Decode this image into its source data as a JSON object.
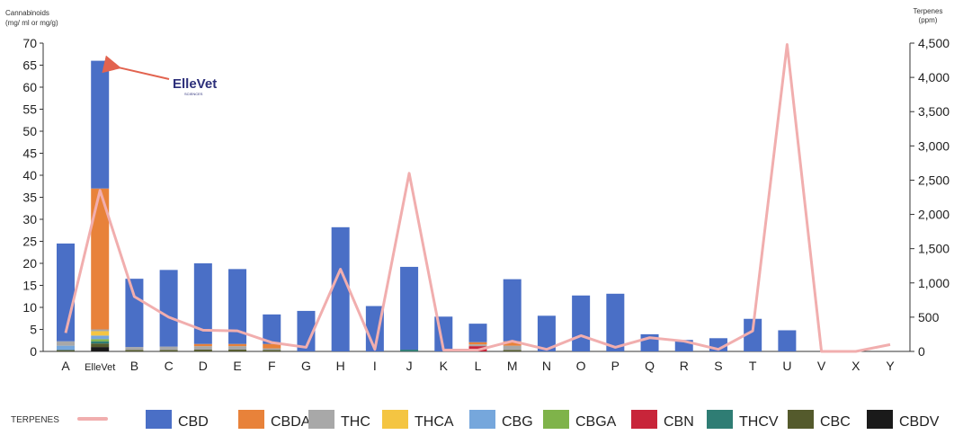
{
  "chart_data": {
    "type": "bar",
    "stacked": true,
    "categories": [
      "A",
      "ElleVet",
      "B",
      "C",
      "D",
      "E",
      "F",
      "G",
      "H",
      "I",
      "J",
      "K",
      "L",
      "M",
      "N",
      "O",
      "P",
      "Q",
      "R",
      "S",
      "T",
      "U",
      "V",
      "X",
      "Y"
    ],
    "y_left_label": [
      "Cannabinoids",
      "(mg/ ml or mg/g)"
    ],
    "y_right_label": [
      "Terpenes",
      "(ppm)"
    ],
    "y_left_range": [
      0,
      70
    ],
    "y_right_range": [
      0,
      4500
    ],
    "y_left_ticks": [
      0,
      5,
      10,
      15,
      20,
      25,
      30,
      35,
      40,
      45,
      50,
      55,
      60,
      65,
      70
    ],
    "y_right_ticks": [
      0,
      500,
      1000,
      1500,
      2000,
      2500,
      3000,
      3500,
      4000,
      4500
    ],
    "y_right_tick_labels": [
      "0",
      "500",
      "1,000",
      "1,500",
      "2,000",
      "2,500",
      "3,000",
      "3,500",
      "4,000",
      "4,500"
    ],
    "grid": false,
    "legend_position": "bottom",
    "colors": {
      "CBD": "#4a6fc6",
      "CBDA": "#e8823a",
      "THC": "#a8a8a8",
      "THCA": "#f4c542",
      "CBG": "#76a7dc",
      "CBGA": "#7fb34a",
      "CBN": "#c8253a",
      "THCV": "#2f7d74",
      "CBC": "#545a2c",
      "CBDV": "#1a1a1a",
      "TERPENES": "#f1aeae"
    },
    "series": [
      {
        "name": "CBDV",
        "values": [
          0,
          1.0,
          0,
          0,
          0,
          0,
          0,
          0,
          0,
          0,
          0,
          0,
          0,
          0,
          0,
          0,
          0,
          0,
          0,
          0,
          0,
          0,
          0,
          0,
          0
        ]
      },
      {
        "name": "CBC",
        "values": [
          0.3,
          0.8,
          0.3,
          0.3,
          0.4,
          0.4,
          0.3,
          0,
          0,
          0,
          0,
          0,
          0,
          0.3,
          0,
          0,
          0,
          0,
          0,
          0,
          0,
          0,
          0,
          0,
          0
        ]
      },
      {
        "name": "THCV",
        "values": [
          0,
          0.5,
          0,
          0,
          0,
          0,
          0,
          0,
          0,
          0,
          0.4,
          0,
          0,
          0,
          0,
          0,
          0,
          0,
          0,
          0,
          0,
          0,
          0,
          0,
          0
        ]
      },
      {
        "name": "CBN",
        "values": [
          0,
          0,
          0,
          0,
          0,
          0,
          0,
          0,
          0,
          0,
          0,
          0,
          1.2,
          0,
          0,
          0,
          0,
          0,
          0,
          0,
          0,
          0,
          0,
          0,
          0
        ]
      },
      {
        "name": "CBGA",
        "values": [
          0,
          0.5,
          0,
          0,
          0,
          0,
          0,
          0,
          0,
          0,
          0,
          0,
          0,
          0,
          0,
          0,
          0,
          0,
          0,
          0,
          0,
          0,
          0,
          0,
          0
        ]
      },
      {
        "name": "CBG",
        "values": [
          1.0,
          0.8,
          0,
          0,
          0,
          0,
          0,
          0,
          0,
          0,
          0,
          0,
          0,
          0,
          0,
          0,
          0,
          0,
          0,
          0,
          0,
          0,
          0,
          0,
          0
        ]
      },
      {
        "name": "THCA",
        "values": [
          0,
          1.0,
          0,
          0,
          0,
          0,
          0,
          0,
          0,
          0,
          0,
          0,
          0,
          0,
          0,
          0,
          0,
          0,
          0,
          0,
          0,
          0,
          0,
          0,
          0
        ]
      },
      {
        "name": "THC",
        "values": [
          1.0,
          0.4,
          0.7,
          0.8,
          0.8,
          0.8,
          0.4,
          0,
          0,
          0,
          0,
          0,
          0.4,
          1.0,
          0,
          0,
          0,
          0,
          0,
          0,
          0,
          0,
          0,
          0,
          0
        ]
      },
      {
        "name": "CBDA",
        "values": [
          0,
          32.0,
          0,
          0,
          0.5,
          0.5,
          1.0,
          0,
          0,
          0,
          0,
          0,
          0.5,
          1.0,
          0,
          0,
          0,
          0,
          0,
          0,
          0,
          0,
          0,
          0,
          0
        ]
      },
      {
        "name": "CBD",
        "values": [
          22.2,
          29.0,
          15.5,
          17.4,
          18.3,
          17.0,
          6.7,
          9.2,
          28.2,
          10.3,
          18.8,
          7.9,
          4.2,
          14.1,
          8.1,
          12.7,
          13.1,
          3.9,
          2.6,
          3.0,
          7.4,
          4.8,
          0,
          0,
          0
        ]
      }
    ],
    "terpenes": {
      "name": "TERPENES",
      "values": [
        270,
        2350,
        800,
        500,
        310,
        300,
        130,
        60,
        1200,
        30,
        2600,
        20,
        20,
        150,
        30,
        230,
        60,
        200,
        150,
        30,
        300,
        4480,
        0,
        0,
        100
      ]
    },
    "legend": [
      "CBD",
      "CBDA",
      "THC",
      "THCA",
      "CBG",
      "CBGA",
      "CBN",
      "THCV",
      "CBC",
      "CBDV"
    ],
    "legend_terpenes_label": "TERPENES",
    "annotation": {
      "text": "ElleVet",
      "subtext": "SCIENCES",
      "target_category": "ElleVet"
    }
  }
}
